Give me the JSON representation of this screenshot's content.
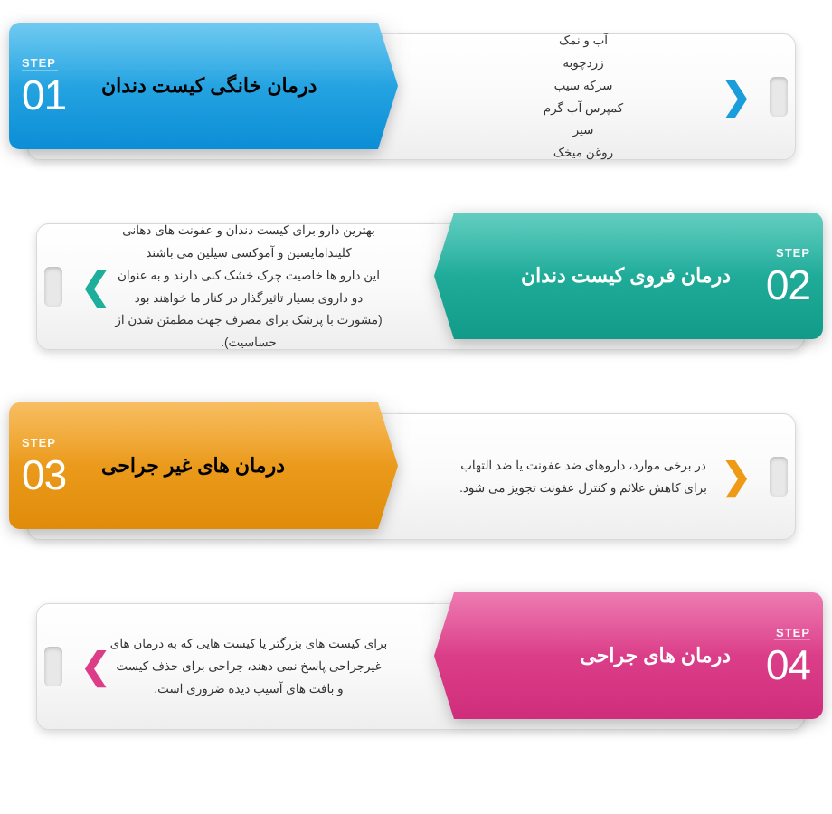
{
  "infographic_type": "stepped-arrow-list",
  "direction": "rtl",
  "step_label": "STEP",
  "steps": [
    {
      "num": "01",
      "side": "left",
      "title": "درمان خانگی کیست دندان",
      "title_color": "#000000",
      "color_light": "#3fb8ec",
      "color_dark": "#0b8ed6",
      "chevron_color": "#1a9edb",
      "lines": [
        "آب و نمک",
        "زردچوبه",
        "سرکه سیب",
        "کمپرس آب گرم",
        "سیر",
        "روغن میخک"
      ]
    },
    {
      "num": "02",
      "side": "right",
      "title": "درمان فروی کیست دندان",
      "title_color": "#ffffff",
      "color_light": "#2fbdab",
      "color_dark": "#119a88",
      "chevron_color": "#1eae9c",
      "lines": [
        "بهترین دارو برای کیست دندان و عفونت های دهانی",
        "کلیندامایسین و آموکسی سیلین می باشند",
        "این دارو ها خاصیت چرک خشک کنی دارند و به عنوان",
        "دو داروی بسیار تاثیرگذار در کنار ما خواهند بود",
        "(مشورت با پزشک برای مصرف جهت مطمئن شدن از حساسیت)."
      ]
    },
    {
      "num": "03",
      "side": "left",
      "title": "درمان های غیر جراحی",
      "title_color": "#000000",
      "color_light": "#f5a82d",
      "color_dark": "#e08c0a",
      "chevron_color": "#ee9a17",
      "lines": [
        "در برخی موارد، داروهای ضد عفونت یا ضد التهاب",
        "برای کاهش علائم و کنترل عفونت تجویز می شود."
      ]
    },
    {
      "num": "04",
      "side": "right",
      "title": "درمان های جراحی",
      "title_color": "#ffffff",
      "color_light": "#e74f97",
      "color_dark": "#cf2d7b",
      "chevron_color": "#db3d88",
      "lines": [
        "برای کیست های بزرگتر یا کیست هایی که به درمان های",
        "غیرجراحی پاسخ نمی دهند، جراحی برای حذف کیست",
        "و بافت های آسیب دیده ضروری است."
      ]
    }
  ],
  "content_body_fontsize": 13.5,
  "title_fontsize": 22,
  "stepnum_fontsize": 46,
  "page_background": "#ffffff"
}
